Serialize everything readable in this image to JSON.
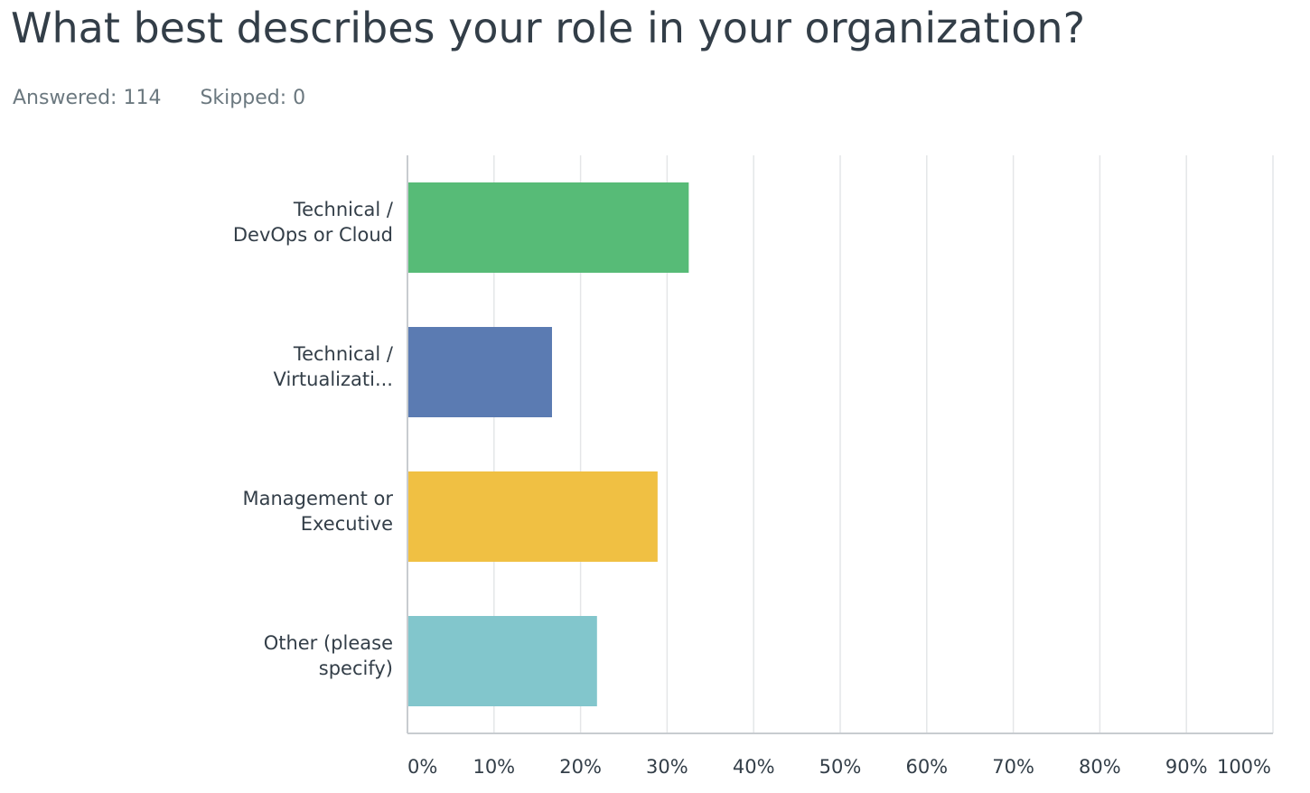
{
  "question": {
    "title": "What best describes your role in your organization?",
    "answered_label": "Answered: 114",
    "skipped_label": "Skipped: 0"
  },
  "chart_data": {
    "type": "bar",
    "orientation": "horizontal",
    "categories": [
      [
        "Technical /",
        "DevOps or Cloud"
      ],
      [
        "Technical /",
        "Virtualizati..."
      ],
      [
        "Management or",
        "Executive"
      ],
      [
        "Other (please",
        "specify)"
      ]
    ],
    "values": [
      32.5,
      16.7,
      28.9,
      21.9
    ],
    "colors": [
      "#57bb77",
      "#5b7bb2",
      "#f0c043",
      "#82c6cc"
    ],
    "xlim": [
      0,
      100
    ],
    "x_ticks": [
      0,
      10,
      20,
      30,
      40,
      50,
      60,
      70,
      80,
      90,
      100
    ],
    "x_tick_labels": [
      "0%",
      "10%",
      "20%",
      "30%",
      "40%",
      "50%",
      "60%",
      "70%",
      "80%",
      "90%",
      "100%"
    ],
    "grid": true,
    "legend": "none"
  }
}
